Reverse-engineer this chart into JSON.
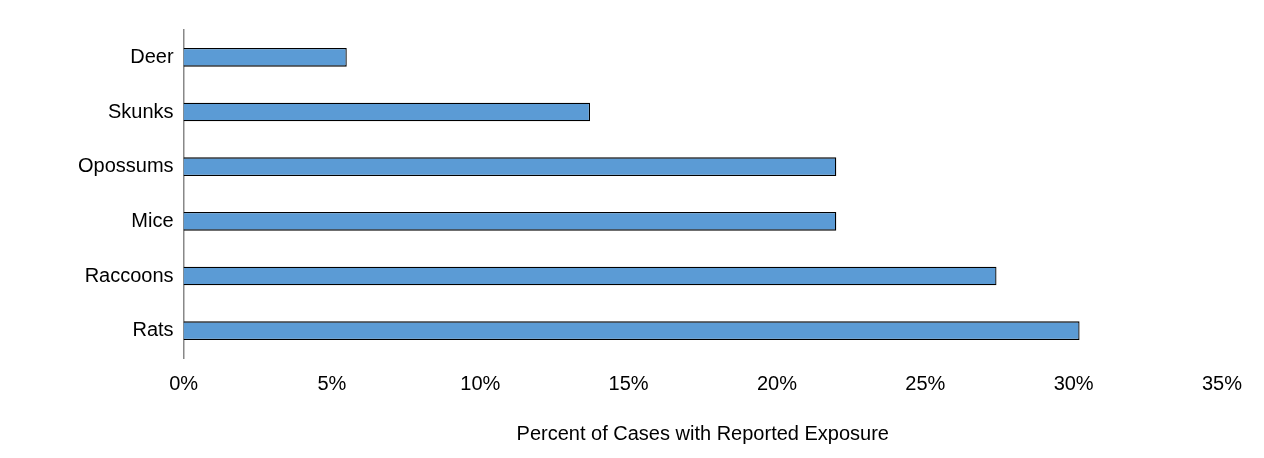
{
  "chart_data": {
    "type": "bar",
    "orientation": "horizontal",
    "xlabel": "Percent of Cases with Reported Exposure",
    "categories": [
      "Deer",
      "Skunks",
      "Opossums",
      "Mice",
      "Raccoons",
      "Rats"
    ],
    "values": [
      5.5,
      13.7,
      22.0,
      22.0,
      27.4,
      30.2
    ],
    "color": "#5b9bd5",
    "xlim": [
      0,
      35
    ],
    "xticks": [
      {
        "value": 0,
        "label": "0%"
      },
      {
        "value": 5,
        "label": "5%"
      },
      {
        "value": 10,
        "label": "10%"
      },
      {
        "value": 15,
        "label": "15%"
      },
      {
        "value": 20,
        "label": "20%"
      },
      {
        "value": 25,
        "label": "25%"
      },
      {
        "value": 30,
        "label": "30%"
      },
      {
        "value": 35,
        "label": "35%"
      }
    ],
    "grid": false,
    "legend": false
  }
}
